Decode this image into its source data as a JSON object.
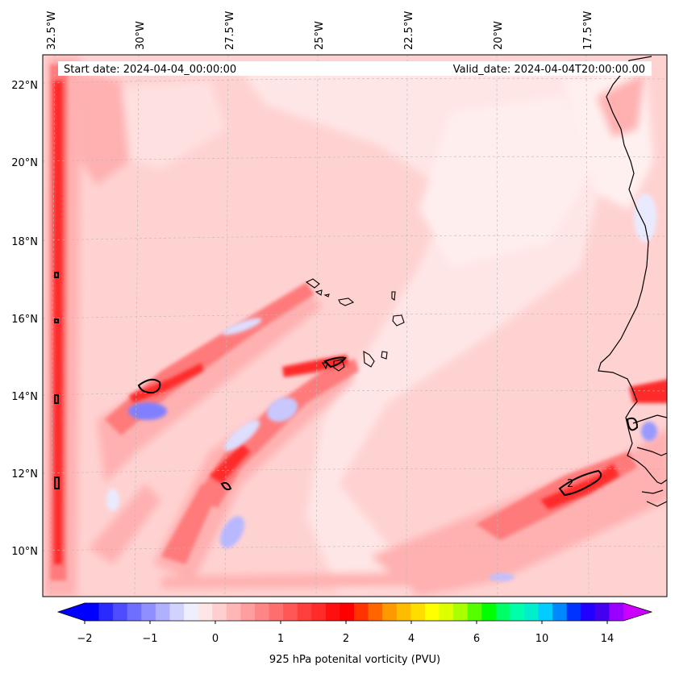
{
  "header": {
    "start_date": "Start date: 2024-04-04_00:00:00",
    "valid_date": "Valid_date: 2024-04-04T20:00:00.00"
  },
  "map": {
    "lon_labels": [
      "32.5°W",
      "30°W",
      "27.5°W",
      "25°W",
      "22.5°W",
      "20°W",
      "17.5°W"
    ],
    "lat_labels": [
      "22°N",
      "20°N",
      "18°N",
      "16°N",
      "14°N",
      "12°N",
      "10°N"
    ],
    "contour_label": "2",
    "gridlines": true
  },
  "colorbar": {
    "title": "925 hPa potenital vorticity (PVU)",
    "tick_labels": [
      "−2",
      "−1",
      "0",
      "1",
      "2",
      "4",
      "6",
      "10",
      "14"
    ],
    "colors": [
      "#0000ff",
      "#2a2aff",
      "#4d4dff",
      "#6f6fff",
      "#8f8fff",
      "#b0b0ff",
      "#d2d2ff",
      "#eeeeff",
      "#ffe6e6",
      "#ffcece",
      "#ffb6b6",
      "#ff9e9e",
      "#ff8686",
      "#ff6e6e",
      "#ff5656",
      "#ff3e3e",
      "#ff2a2a",
      "#ff1010",
      "#ff0000",
      "#ff3300",
      "#ff6600",
      "#ff9900",
      "#ffbb00",
      "#ffdd00",
      "#ffff00",
      "#ddff00",
      "#aaff00",
      "#55ff00",
      "#00ff00",
      "#00ff66",
      "#00ffaa",
      "#00eecc",
      "#00ccff",
      "#0088ff",
      "#0033ff",
      "#2200ff",
      "#4400ee",
      "#9900ff"
    ],
    "extend_low_color": "#0000ff",
    "extend_high_color": "#cc00ff"
  }
}
